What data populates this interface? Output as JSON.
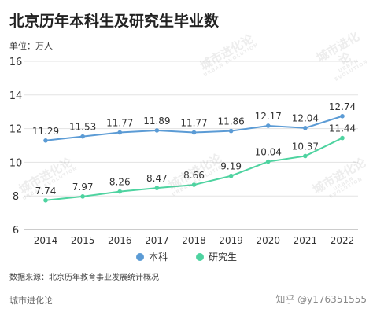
{
  "title": "北京历年本科生及研究生毕业数",
  "unit_label": "单位：万人",
  "source": "数据来源：北京历年教育事业发展统计概况",
  "footer_left": "城市进化论",
  "footer_right": "知乎 @y176351555",
  "watermark": "城市进化论",
  "watermark_sub": "URBAN EVOLUTION",
  "colors": {
    "undergrad": "#5b9bd5",
    "grad": "#4ed3a0"
  },
  "chart_data": {
    "type": "line",
    "title": "北京历年本科生及研究生毕业数",
    "ylabel": "单位：万人",
    "xlabel": "",
    "x": [
      "2014",
      "2015",
      "2016",
      "2017",
      "2018",
      "2019",
      "2020",
      "2021",
      "2022"
    ],
    "ylim": [
      6,
      16
    ],
    "yticks": [
      6,
      8,
      10,
      12,
      14,
      16
    ],
    "grid": true,
    "legend": "bottom",
    "series": [
      {
        "name": "本科",
        "values": [
          11.29,
          11.53,
          11.77,
          11.89,
          11.77,
          11.86,
          12.17,
          12.04,
          12.74
        ]
      },
      {
        "name": "研究生",
        "values": [
          7.74,
          7.97,
          8.26,
          8.47,
          8.66,
          9.19,
          10.04,
          10.37,
          11.44
        ]
      }
    ]
  }
}
